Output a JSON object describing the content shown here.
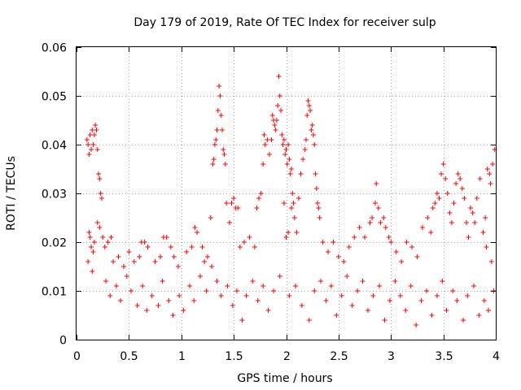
{
  "chart_data": {
    "type": "scatter",
    "title": "Day 179 of 2019, Rate Of TEC Index for receiver sulp",
    "xlabel": "GPS time / hours",
    "ylabel": "ROTI / TECUs",
    "xlim": [
      0,
      4
    ],
    "ylim": [
      0,
      0.06
    ],
    "xticks": [
      0,
      0.5,
      1,
      1.5,
      2,
      2.5,
      3,
      3.5,
      4
    ],
    "xtick_labels": [
      "0",
      "0.5",
      "1",
      "1.5",
      "2",
      "2.5",
      "3",
      "3.5",
      "4"
    ],
    "yticks": [
      0,
      0.01,
      0.02,
      0.03,
      0.04,
      0.05,
      0.06
    ],
    "ytick_labels": [
      "0",
      "0.01",
      "0.02",
      "0.03",
      "0.04",
      "0.05",
      "0.06"
    ],
    "grid": true,
    "marker": "+",
    "series_color": "#ff0000",
    "series": [
      {
        "name": "ROTI",
        "points": [
          [
            0.1,
            0.041
          ],
          [
            0.11,
            0.04
          ],
          [
            0.12,
            0.038
          ],
          [
            0.13,
            0.042
          ],
          [
            0.14,
            0.039
          ],
          [
            0.15,
            0.043
          ],
          [
            0.16,
            0.04
          ],
          [
            0.17,
            0.042
          ],
          [
            0.18,
            0.044
          ],
          [
            0.19,
            0.043
          ],
          [
            0.2,
            0.039
          ],
          [
            0.21,
            0.034
          ],
          [
            0.22,
            0.033
          ],
          [
            0.23,
            0.03
          ],
          [
            0.24,
            0.029
          ],
          [
            0.11,
            0.016
          ],
          [
            0.12,
            0.022
          ],
          [
            0.13,
            0.021
          ],
          [
            0.14,
            0.019
          ],
          [
            0.15,
            0.014
          ],
          [
            0.16,
            0.018
          ],
          [
            0.17,
            0.02
          ],
          [
            0.2,
            0.024
          ],
          [
            0.22,
            0.023
          ],
          [
            0.25,
            0.021
          ],
          [
            0.27,
            0.019
          ],
          [
            0.3,
            0.02
          ],
          [
            0.33,
            0.021
          ],
          [
            0.35,
            0.016
          ],
          [
            0.4,
            0.017
          ],
          [
            0.45,
            0.015
          ],
          [
            0.5,
            0.018
          ],
          [
            0.55,
            0.016
          ],
          [
            0.6,
            0.017
          ],
          [
            0.62,
            0.02
          ],
          [
            0.65,
            0.02
          ],
          [
            0.68,
            0.019
          ],
          [
            0.75,
            0.016
          ],
          [
            0.8,
            0.017
          ],
          [
            0.83,
            0.021
          ],
          [
            0.86,
            0.021
          ],
          [
            0.9,
            0.019
          ],
          [
            0.93,
            0.017
          ],
          [
            0.97,
            0.015
          ],
          [
            1.05,
            0.018
          ],
          [
            1.1,
            0.019
          ],
          [
            1.13,
            0.023
          ],
          [
            1.15,
            0.022
          ],
          [
            1.2,
            0.019
          ],
          [
            1.22,
            0.016
          ],
          [
            1.25,
            0.017
          ],
          [
            1.28,
            0.025
          ],
          [
            1.3,
            0.036
          ],
          [
            1.31,
            0.037
          ],
          [
            1.32,
            0.04
          ],
          [
            1.33,
            0.041
          ],
          [
            1.34,
            0.043
          ],
          [
            1.35,
            0.047
          ],
          [
            1.36,
            0.052
          ],
          [
            1.37,
            0.05
          ],
          [
            1.38,
            0.046
          ],
          [
            1.39,
            0.043
          ],
          [
            1.4,
            0.039
          ],
          [
            1.41,
            0.038
          ],
          [
            1.42,
            0.036
          ],
          [
            1.43,
            0.028
          ],
          [
            1.46,
            0.024
          ],
          [
            1.48,
            0.028
          ],
          [
            1.5,
            0.029
          ],
          [
            1.52,
            0.027
          ],
          [
            1.54,
            0.027
          ],
          [
            1.56,
            0.019
          ],
          [
            1.6,
            0.02
          ],
          [
            1.65,
            0.021
          ],
          [
            1.7,
            0.019
          ],
          [
            1.72,
            0.027
          ],
          [
            1.74,
            0.029
          ],
          [
            1.76,
            0.03
          ],
          [
            1.78,
            0.036
          ],
          [
            1.79,
            0.042
          ],
          [
            1.8,
            0.04
          ],
          [
            1.82,
            0.041
          ],
          [
            1.84,
            0.038
          ],
          [
            1.86,
            0.041
          ],
          [
            1.87,
            0.046
          ],
          [
            1.88,
            0.045
          ],
          [
            1.89,
            0.044
          ],
          [
            1.9,
            0.043
          ],
          [
            1.91,
            0.045
          ],
          [
            1.92,
            0.048
          ],
          [
            1.93,
            0.054
          ],
          [
            1.94,
            0.05
          ],
          [
            1.95,
            0.047
          ],
          [
            1.96,
            0.042
          ],
          [
            1.97,
            0.04
          ],
          [
            1.98,
            0.041
          ],
          [
            1.99,
            0.038
          ],
          [
            2.0,
            0.039
          ],
          [
            2.01,
            0.036
          ],
          [
            2.02,
            0.04
          ],
          [
            2.03,
            0.037
          ],
          [
            2.04,
            0.034
          ],
          [
            2.05,
            0.035
          ],
          [
            2.06,
            0.03
          ],
          [
            2.07,
            0.028
          ],
          [
            1.98,
            0.028
          ],
          [
            2.0,
            0.021
          ],
          [
            2.02,
            0.022
          ],
          [
            2.05,
            0.027
          ],
          [
            2.08,
            0.025
          ],
          [
            2.1,
            0.022
          ],
          [
            2.12,
            0.029
          ],
          [
            2.14,
            0.034
          ],
          [
            2.16,
            0.037
          ],
          [
            2.18,
            0.039
          ],
          [
            2.19,
            0.041
          ],
          [
            2.2,
            0.046
          ],
          [
            2.21,
            0.049
          ],
          [
            2.22,
            0.048
          ],
          [
            2.23,
            0.047
          ],
          [
            2.24,
            0.043
          ],
          [
            2.25,
            0.044
          ],
          [
            2.26,
            0.042
          ],
          [
            2.27,
            0.04
          ],
          [
            2.28,
            0.034
          ],
          [
            2.29,
            0.031
          ],
          [
            2.3,
            0.028
          ],
          [
            2.31,
            0.027
          ],
          [
            2.32,
            0.025
          ],
          [
            2.35,
            0.02
          ],
          [
            2.4,
            0.018
          ],
          [
            2.45,
            0.02
          ],
          [
            2.5,
            0.017
          ],
          [
            2.55,
            0.016
          ],
          [
            2.6,
            0.019
          ],
          [
            2.65,
            0.021
          ],
          [
            2.7,
            0.023
          ],
          [
            2.75,
            0.021
          ],
          [
            2.8,
            0.024
          ],
          [
            2.82,
            0.025
          ],
          [
            2.85,
            0.028
          ],
          [
            2.86,
            0.032
          ],
          [
            2.88,
            0.027
          ],
          [
            2.9,
            0.024
          ],
          [
            2.93,
            0.025
          ],
          [
            2.95,
            0.023
          ],
          [
            2.98,
            0.021
          ],
          [
            3.0,
            0.02
          ],
          [
            3.05,
            0.018
          ],
          [
            3.1,
            0.016
          ],
          [
            3.15,
            0.02
          ],
          [
            3.2,
            0.019
          ],
          [
            3.25,
            0.017
          ],
          [
            3.3,
            0.023
          ],
          [
            3.35,
            0.025
          ],
          [
            3.38,
            0.022
          ],
          [
            3.4,
            0.027
          ],
          [
            3.42,
            0.028
          ],
          [
            3.44,
            0.03
          ],
          [
            3.46,
            0.029
          ],
          [
            3.48,
            0.034
          ],
          [
            3.5,
            0.036
          ],
          [
            3.52,
            0.033
          ],
          [
            3.54,
            0.03
          ],
          [
            3.56,
            0.026
          ],
          [
            3.58,
            0.024
          ],
          [
            3.6,
            0.028
          ],
          [
            3.62,
            0.032
          ],
          [
            3.64,
            0.034
          ],
          [
            3.66,
            0.033
          ],
          [
            3.68,
            0.031
          ],
          [
            3.7,
            0.029
          ],
          [
            3.72,
            0.024
          ],
          [
            3.74,
            0.021
          ],
          [
            3.76,
            0.027
          ],
          [
            3.78,
            0.026
          ],
          [
            3.8,
            0.024
          ],
          [
            3.82,
            0.029
          ],
          [
            3.85,
            0.033
          ],
          [
            3.88,
            0.022
          ],
          [
            3.9,
            0.025
          ],
          [
            3.92,
            0.035
          ],
          [
            3.94,
            0.034
          ],
          [
            3.95,
            0.032
          ],
          [
            3.97,
            0.036
          ],
          [
            3.99,
            0.039
          ],
          [
            0.28,
            0.012
          ],
          [
            0.32,
            0.009
          ],
          [
            0.38,
            0.011
          ],
          [
            0.42,
            0.008
          ],
          [
            0.48,
            0.013
          ],
          [
            0.52,
            0.01
          ],
          [
            0.58,
            0.007
          ],
          [
            0.63,
            0.011
          ],
          [
            0.67,
            0.006
          ],
          [
            0.72,
            0.009
          ],
          [
            0.78,
            0.007
          ],
          [
            0.82,
            0.012
          ],
          [
            0.88,
            0.008
          ],
          [
            0.92,
            0.005
          ],
          [
            0.98,
            0.009
          ],
          [
            1.02,
            0.006
          ],
          [
            1.08,
            0.011
          ],
          [
            1.12,
            0.008
          ],
          [
            1.18,
            0.013
          ],
          [
            1.24,
            0.01
          ],
          [
            1.29,
            0.015
          ],
          [
            1.34,
            0.012
          ],
          [
            1.38,
            0.009
          ],
          [
            1.44,
            0.011
          ],
          [
            1.49,
            0.007
          ],
          [
            1.53,
            0.01
          ],
          [
            1.58,
            0.004
          ],
          [
            1.62,
            0.009
          ],
          [
            1.68,
            0.012
          ],
          [
            1.73,
            0.008
          ],
          [
            1.78,
            0.011
          ],
          [
            1.83,
            0.006
          ],
          [
            1.88,
            0.01
          ],
          [
            1.94,
            0.013
          ],
          [
            2.03,
            0.009
          ],
          [
            2.09,
            0.011
          ],
          [
            2.15,
            0.007
          ],
          [
            2.22,
            0.004
          ],
          [
            2.27,
            0.01
          ],
          [
            2.33,
            0.012
          ],
          [
            2.38,
            0.008
          ],
          [
            2.43,
            0.011
          ],
          [
            2.48,
            0.005
          ],
          [
            2.53,
            0.009
          ],
          [
            2.58,
            0.013
          ],
          [
            2.63,
            0.007
          ],
          [
            2.68,
            0.01
          ],
          [
            2.73,
            0.012
          ],
          [
            2.78,
            0.006
          ],
          [
            2.83,
            0.009
          ],
          [
            2.89,
            0.011
          ],
          [
            2.94,
            0.004
          ],
          [
            2.99,
            0.008
          ],
          [
            3.04,
            0.012
          ],
          [
            3.09,
            0.009
          ],
          [
            3.14,
            0.006
          ],
          [
            3.19,
            0.011
          ],
          [
            3.24,
            0.003
          ],
          [
            3.29,
            0.008
          ],
          [
            3.34,
            0.01
          ],
          [
            3.39,
            0.005
          ],
          [
            3.44,
            0.009
          ],
          [
            3.49,
            0.012
          ],
          [
            3.53,
            0.006
          ],
          [
            3.59,
            0.01
          ],
          [
            3.63,
            0.008
          ],
          [
            3.69,
            0.004
          ],
          [
            3.73,
            0.009
          ],
          [
            3.79,
            0.011
          ],
          [
            3.84,
            0.005
          ],
          [
            3.89,
            0.008
          ],
          [
            3.93,
            0.006
          ],
          [
            3.98,
            0.01
          ],
          [
            3.96,
            0.016
          ],
          [
            3.91,
            0.019
          ]
        ]
      }
    ]
  }
}
